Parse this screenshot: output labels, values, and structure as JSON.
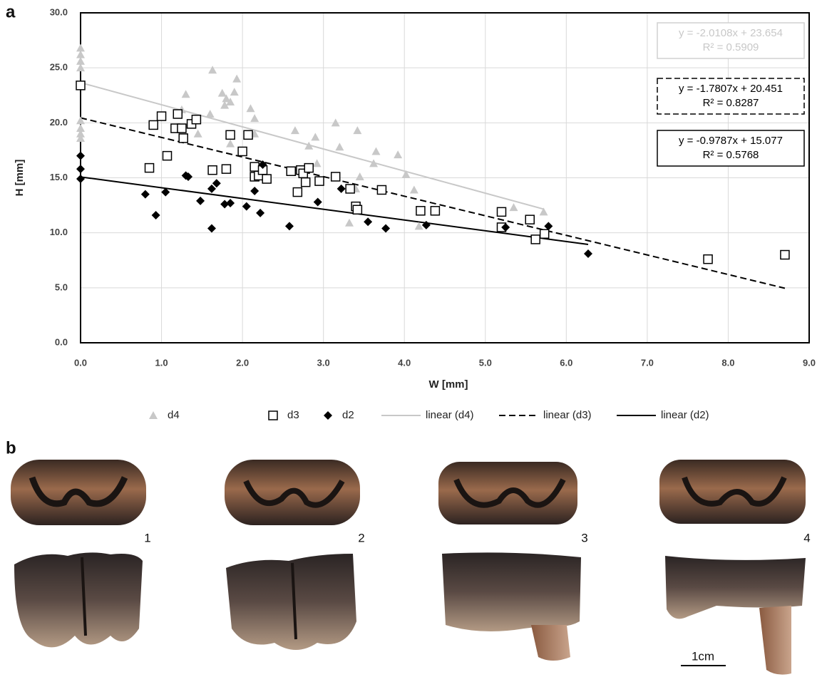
{
  "panels": {
    "a": "a",
    "b": "b"
  },
  "specimens": [
    "1",
    "2",
    "3",
    "4"
  ],
  "scale_bar": "1cm",
  "chart_data": {
    "type": "scatter",
    "xlabel": "W [mm]",
    "ylabel": "H [mm]",
    "xlim": [
      0,
      9
    ],
    "ylim": [
      0,
      30
    ],
    "xticks": [
      {
        "value": 0,
        "label": "0.0"
      },
      {
        "value": 1,
        "label": "1.0"
      },
      {
        "value": 2,
        "label": "2.0"
      },
      {
        "value": 3,
        "label": "3.0"
      },
      {
        "value": 4,
        "label": "4.0"
      },
      {
        "value": 5,
        "label": "5.0"
      },
      {
        "value": 6,
        "label": "6.0"
      },
      {
        "value": 7,
        "label": "7.0"
      },
      {
        "value": 8,
        "label": "8.0"
      },
      {
        "value": 9,
        "label": "9.0"
      }
    ],
    "yticks": [
      {
        "value": 0,
        "label": "0.0"
      },
      {
        "value": 5,
        "label": "5.0"
      },
      {
        "value": 10,
        "label": "10.0"
      },
      {
        "value": 15,
        "label": "15.0"
      },
      {
        "value": 20,
        "label": "20.0"
      },
      {
        "value": 25,
        "label": "25.0"
      },
      {
        "value": 30,
        "label": "30.0"
      }
    ],
    "grid": true,
    "series": [
      {
        "name": "d4",
        "color": "#c8c8c8",
        "marker": "triangle",
        "x": [
          0,
          0,
          0,
          0,
          0,
          0,
          0,
          0,
          1.3,
          1.25,
          1.45,
          1.63,
          1.6,
          1.75,
          1.8,
          1.78,
          1.85,
          1.9,
          1.93,
          1.85,
          2.1,
          2.15,
          2.15,
          2.65,
          2.82,
          2.9,
          2.92,
          3.15,
          3.2,
          3.32,
          3.42,
          3.45,
          3.4,
          3.62,
          3.65,
          3.92,
          4.02,
          4.12,
          4.18,
          5.35,
          5.72
        ],
        "values": [
          26.8,
          26.2,
          25.6,
          25.0,
          20.2,
          19.5,
          19.0,
          18.6,
          22.6,
          21.2,
          19.0,
          24.8,
          20.8,
          22.7,
          22.2,
          21.6,
          21.9,
          22.8,
          24.0,
          18.1,
          21.3,
          20.4,
          19.0,
          19.3,
          17.9,
          18.7,
          16.3,
          20.0,
          17.8,
          10.9,
          19.3,
          15.1,
          14.0,
          16.3,
          17.4,
          17.1,
          15.3,
          13.9,
          10.6,
          12.3,
          11.9
        ]
      },
      {
        "name": "d3",
        "color": "#000000",
        "marker": "square",
        "x": [
          0,
          0.85,
          0.9,
          1.0,
          1.07,
          1.17,
          1.2,
          1.25,
          1.27,
          1.37,
          1.43,
          1.63,
          1.8,
          1.85,
          2.0,
          2.07,
          2.15,
          2.15,
          2.2,
          2.25,
          2.3,
          2.6,
          2.68,
          2.72,
          2.75,
          2.78,
          2.82,
          2.95,
          3.15,
          3.33,
          3.4,
          3.42,
          3.72,
          4.2,
          4.38,
          5.2,
          5.2,
          5.55,
          5.62,
          5.73,
          7.75,
          8.7
        ],
        "values": [
          23.4,
          15.9,
          19.8,
          20.6,
          17.0,
          19.5,
          20.8,
          19.5,
          18.6,
          19.9,
          20.3,
          15.7,
          15.8,
          18.9,
          17.4,
          18.9,
          16.0,
          15.1,
          15.2,
          15.7,
          14.9,
          15.6,
          13.7,
          15.7,
          15.4,
          14.6,
          15.9,
          14.7,
          15.1,
          14.0,
          12.4,
          12.1,
          13.9,
          12.0,
          12.0,
          11.9,
          10.5,
          11.2,
          9.4,
          9.9,
          7.6,
          8.0
        ]
      },
      {
        "name": "d2",
        "color": "#000000",
        "marker": "diamond",
        "x": [
          0,
          0,
          0,
          0.8,
          0.93,
          1.05,
          1.3,
          1.33,
          1.48,
          1.62,
          1.62,
          1.68,
          1.78,
          1.85,
          2.05,
          2.15,
          2.22,
          2.25,
          2.58,
          2.93,
          3.22,
          3.55,
          3.77,
          4.27,
          5.25,
          5.78,
          6.27
        ],
        "values": [
          17.0,
          15.8,
          14.9,
          13.5,
          11.6,
          13.7,
          15.2,
          15.1,
          12.9,
          10.4,
          14.0,
          14.5,
          12.6,
          12.7,
          12.4,
          13.8,
          11.8,
          16.2,
          10.6,
          12.8,
          14.0,
          11.0,
          10.4,
          10.7,
          10.5,
          10.6,
          8.1
        ]
      }
    ],
    "trendlines": [
      {
        "name": "linear (d4)",
        "series": 0,
        "color": "#c8c8c8",
        "dash": false,
        "slope": -2.0108,
        "intercept": 23.654,
        "equation": "y = -2.0108x + 23.654",
        "r2": "R² = 0.5909"
      },
      {
        "name": "linear (d3)",
        "series": 1,
        "color": "#000000",
        "dash": true,
        "slope": -1.7807,
        "intercept": 20.451,
        "equation": "y = -1.7807x + 20.451",
        "r2": "R² = 0.8287"
      },
      {
        "name": "linear (d2)",
        "series": 2,
        "color": "#000000",
        "dash": false,
        "slope": -0.9787,
        "intercept": 15.077,
        "equation": "y = -0.9787x + 15.077",
        "r2": "R² = 0.5768"
      }
    ]
  }
}
